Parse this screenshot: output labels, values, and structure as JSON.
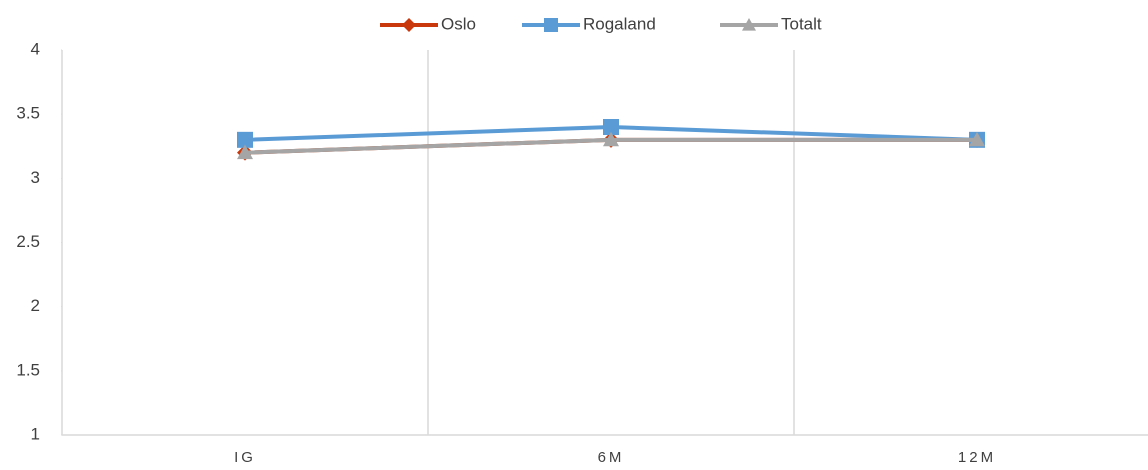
{
  "chart_data": {
    "type": "line",
    "categories": [
      "IG",
      "6M",
      "12M"
    ],
    "series": [
      {
        "name": "Oslo",
        "color": "#c8380c",
        "marker": "diamond",
        "values": [
          3.2,
          3.3,
          3.3
        ]
      },
      {
        "name": "Rogaland",
        "color": "#5b9bd5",
        "marker": "square",
        "values": [
          3.3,
          3.4,
          3.3
        ]
      },
      {
        "name": "Totalt",
        "color": "#a5a5a5",
        "marker": "triangle",
        "values": [
          3.2,
          3.3,
          3.3
        ]
      }
    ],
    "ylim": [
      1,
      4
    ],
    "yticks": [
      1,
      1.5,
      2,
      2.5,
      3,
      3.5,
      4
    ],
    "legend": "top"
  }
}
